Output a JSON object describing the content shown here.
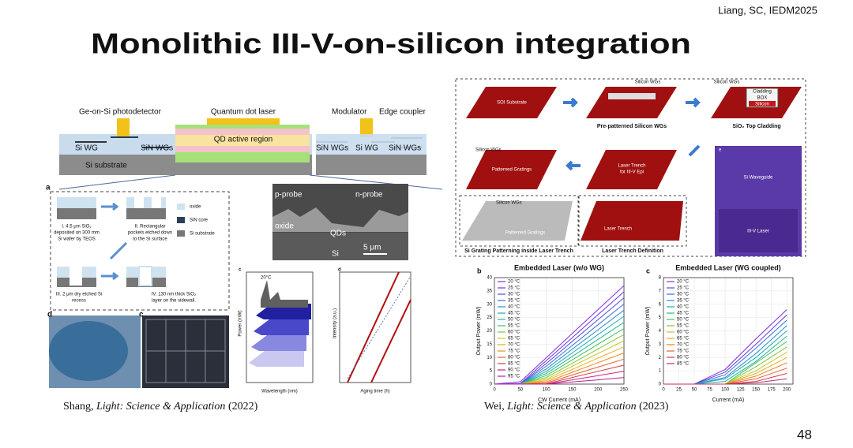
{
  "header": {
    "reference": "Liang, SC, IEDM2025",
    "title": "Monolithic III-V-on-silicon integration",
    "page_number": "48"
  },
  "left_figure": {
    "schematic": {
      "detector": "Ge-on-Si photodetector",
      "laser": "Quantum dot laser",
      "modulator": "Modulator",
      "coupler": "Edge coupler",
      "active": "QD active region",
      "si_wg_left": "Si WG",
      "sin_wgs_left": "SiN WGs",
      "sin_wgs_mid": "SiN WGs",
      "si_wg_right": "Si WG",
      "sin_wgs_right": "SiN WGs",
      "substrate": "Si substrate"
    },
    "panel_a": {
      "label": "a",
      "step1": [
        "I. 4.5 μm SiO₂",
        "deposited on 300 mm",
        "Si wafer by TEOS"
      ],
      "step2": [
        "II. Rectangular",
        "pockets etched down",
        "to the Si surface"
      ],
      "step3": [
        "III. 2 μm dry etched Si",
        "recess"
      ],
      "step4": [
        "IV. 130 nm thick SiO₂",
        "layer on the sidewall."
      ],
      "legend": [
        "oxide",
        "SiN core",
        "Si substrate"
      ]
    },
    "sem": {
      "p_probe": "p-probe",
      "n_probe": "n-probe",
      "oxide": "oxide",
      "qds": "QDs",
      "si": "Si",
      "scale": "5 μm"
    },
    "spectra": {
      "label": "c",
      "temperature": "20°C",
      "x_label": "Wavelength (nm)",
      "y_label": "Power (mW)"
    },
    "aging": {
      "label": "d",
      "x_label": "Aging time (h)",
      "y_label": "Intensity (a.u.)"
    },
    "photos": {
      "wafer_label": "d",
      "chip_label": "c"
    },
    "caption": {
      "author": "Shang,",
      "journal": "Light: Science & Application",
      "year": "(2022)"
    }
  },
  "right_figure": {
    "flow": {
      "soi": "SOI Substrate",
      "silicon_wgs_1": "Silicon WGs",
      "pre_patterned": "Pre-patterned Silicon WGs",
      "silicon_wgs_2": "Silicon WGs",
      "cladding": "Cladding",
      "box": "BOX",
      "silicon": "Silicon",
      "top_cladding": "SiO₂ Top Cladding",
      "silicon_wgs_3": "Silicon WGs",
      "patterned_gratings": "Patterned Gratings",
      "laser_trench": "Laser Trench",
      "for_epi": "for III-V Epi",
      "silicon_wgs_4": "Silicon WGs",
      "patterned_gratings_2": "Patterned Gratings",
      "laser_trench_2": "Laser Trench",
      "grating_step": "Si Grating Patterning inside Laser Trench",
      "trench_step": "Laser Trench Definition",
      "photo_label": "e",
      "si_waveguide": "Si Waveguide",
      "iii_v_laser": "III-V Laser"
    },
    "caption": {
      "author": "Wei,",
      "journal": "Light: Science & Application",
      "year": "(2023)"
    }
  },
  "chart_data": [
    {
      "type": "line",
      "panel_label": "b",
      "title": "Embedded Laser (w/o WG)",
      "x_label": "CW Current (mA)",
      "y_label": "Output Power (mW)",
      "x": [
        0,
        50,
        100,
        150,
        200,
        250
      ],
      "xlim": [
        0,
        250
      ],
      "xticks": [
        0,
        50,
        100,
        150,
        200,
        250
      ],
      "ylim": [
        0,
        40
      ],
      "yticks": [
        0,
        5,
        10,
        15,
        20,
        25,
        30,
        35,
        40
      ],
      "grid": true,
      "series": [
        {
          "name": "20 °C",
          "color": "#8a2be2",
          "values": [
            0,
            0.9,
            9.9,
            19,
            28,
            37
          ]
        },
        {
          "name": "25 °C",
          "color": "#6a3ad8",
          "values": [
            0,
            0.2,
            8.8,
            17.4,
            26.1,
            34.7
          ]
        },
        {
          "name": "30 °C",
          "color": "#4b4fd6",
          "values": [
            0,
            0,
            7.7,
            16,
            24.2,
            32.4
          ]
        },
        {
          "name": "35 °C",
          "color": "#3a6fd8",
          "values": [
            0,
            0,
            6.7,
            14.5,
            22.3,
            30.1
          ]
        },
        {
          "name": "40 °C",
          "color": "#2a90d0",
          "values": [
            0,
            0,
            5.7,
            13.1,
            20.4,
            27.8
          ]
        },
        {
          "name": "45 °C",
          "color": "#22aab8",
          "values": [
            0,
            0,
            4.8,
            11.7,
            18.6,
            25.5
          ]
        },
        {
          "name": "50 °C",
          "color": "#25b890",
          "values": [
            0,
            0,
            4,
            10.4,
            16.8,
            23.2
          ]
        },
        {
          "name": "55 °C",
          "color": "#40c060",
          "values": [
            0,
            0,
            3.2,
            9.1,
            15,
            20.9
          ]
        },
        {
          "name": "60 °C",
          "color": "#80c83a",
          "values": [
            0,
            0,
            2.5,
            7.8,
            13.2,
            18.6
          ]
        },
        {
          "name": "65 °C",
          "color": "#c0c828",
          "values": [
            0,
            0,
            1.8,
            6.7,
            11.5,
            16.3
          ]
        },
        {
          "name": "70 °C",
          "color": "#e8b020",
          "values": [
            0,
            0,
            1.3,
            5.5,
            9.8,
            14
          ]
        },
        {
          "name": "75 °C",
          "color": "#f08a20",
          "values": [
            0,
            0,
            0.8,
            4.4,
            8.1,
            11.7
          ]
        },
        {
          "name": "80 °C",
          "color": "#e86030",
          "values": [
            0,
            0,
            0.4,
            3.4,
            6.4,
            9.4
          ]
        },
        {
          "name": "85 °C",
          "color": "#d83a48",
          "values": [
            0,
            0,
            0.1,
            2.5,
            4.8,
            7.1
          ]
        },
        {
          "name": "90 °C",
          "color": "#c82a78",
          "values": [
            0,
            0,
            0,
            1.6,
            3.2,
            4.8
          ]
        },
        {
          "name": "95 °C",
          "color": "#b020a0",
          "values": [
            0,
            0,
            0,
            0.8,
            1.6,
            2.5
          ]
        }
      ]
    },
    {
      "type": "line",
      "panel_label": "c",
      "title": "Embedded Laser (WG coupled)",
      "x_label": "Current (mA)",
      "y_label": "Output Power (mW)",
      "x": [
        0,
        50,
        100,
        150,
        200
      ],
      "xlim": [
        0,
        210
      ],
      "xticks": [
        0,
        25,
        50,
        75,
        100,
        125,
        150,
        175,
        200
      ],
      "ylim": [
        0,
        8
      ],
      "yticks": [
        0,
        1,
        2,
        3,
        4,
        5,
        6,
        7,
        8
      ],
      "grid": true,
      "series": [
        {
          "name": "20 °C",
          "color": "#8a2be2",
          "values": [
            0,
            0,
            1.1,
            3.4,
            5.6
          ]
        },
        {
          "name": "25 °C",
          "color": "#5a46d8",
          "values": [
            0,
            0,
            0.9,
            3.0,
            5.2
          ]
        },
        {
          "name": "30 °C",
          "color": "#3a6fd8",
          "values": [
            0,
            0,
            0.7,
            2.7,
            4.8
          ]
        },
        {
          "name": "35 °C",
          "color": "#2a90d0",
          "values": [
            0,
            0,
            0.5,
            2.3,
            4.4
          ]
        },
        {
          "name": "40 °C",
          "color": "#22aab8",
          "values": [
            0,
            0,
            0.4,
            2.0,
            4.0
          ]
        },
        {
          "name": "45 °C",
          "color": "#25b890",
          "values": [
            0,
            0,
            0.2,
            1.7,
            3.6
          ]
        },
        {
          "name": "50 °C",
          "color": "#40c060",
          "values": [
            0,
            0,
            0,
            1.6,
            3.2
          ]
        },
        {
          "name": "55 °C",
          "color": "#80c83a",
          "values": [
            0,
            0,
            0,
            1.3,
            2.8
          ]
        },
        {
          "name": "60 °C",
          "color": "#c0c828",
          "values": [
            0,
            0,
            0,
            1.0,
            2.4
          ]
        },
        {
          "name": "65 °C",
          "color": "#e8b020",
          "values": [
            0,
            0,
            0,
            0.8,
            2.0
          ]
        },
        {
          "name": "70 °C",
          "color": "#f08a20",
          "values": [
            0,
            0,
            0,
            0.6,
            1.6
          ]
        },
        {
          "name": "75 °C",
          "color": "#e86030",
          "values": [
            0,
            0,
            0,
            0.4,
            1.2
          ]
        },
        {
          "name": "80 °C",
          "color": "#d83a48",
          "values": [
            0,
            0,
            0,
            0.2,
            0.8
          ]
        },
        {
          "name": "85 °C",
          "color": "#c82a78",
          "values": [
            0,
            0,
            0,
            0.1,
            0.4
          ]
        }
      ]
    }
  ]
}
